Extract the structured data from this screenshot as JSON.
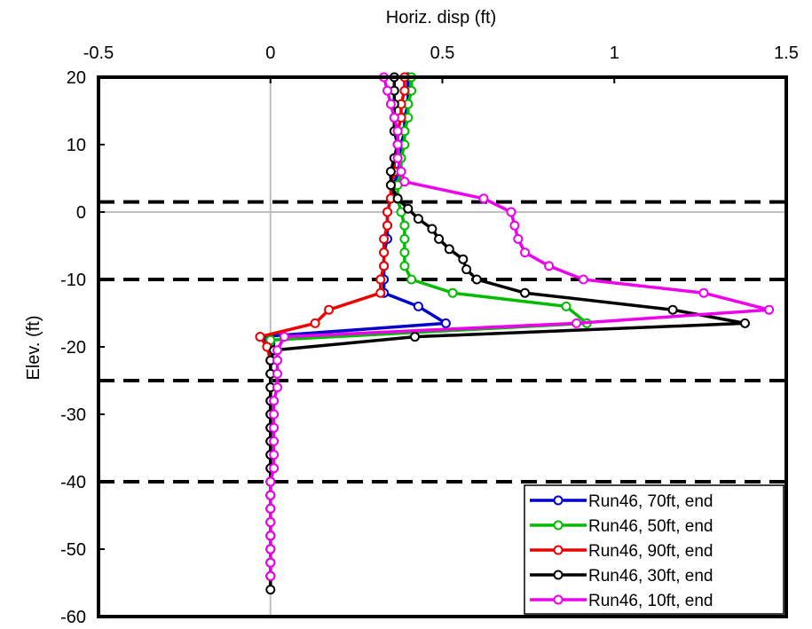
{
  "chart_data": {
    "type": "line",
    "xlabel": "Horiz. disp (ft)",
    "ylabel": "Elev. (ft)",
    "xlim": [
      -0.5,
      1.5
    ],
    "ylim": [
      -60,
      20
    ],
    "x_ticks": [
      "-0.5",
      "0",
      "0.5",
      "1",
      "1.5"
    ],
    "y_ticks": [
      "20",
      "10",
      "0",
      "-10",
      "-20",
      "-30",
      "-40",
      "-50",
      "-60"
    ],
    "x_tick_values": [
      -0.5,
      0,
      0.5,
      1,
      1.5
    ],
    "y_tick_values": [
      20,
      10,
      0,
      -10,
      -20,
      -30,
      -40,
      -50,
      -60
    ],
    "reference_lines_y": [
      1.5,
      -10,
      -25,
      -40
    ],
    "zero_line_x": 0,
    "zero_line_y": 0,
    "x_axis_position": "top",
    "legend_position": "bottom-right",
    "series": [
      {
        "name": "Run46, 70ft, end",
        "color": "#0000cc",
        "points": [
          [
            0.4,
            20
          ],
          [
            0.4,
            18
          ],
          [
            0.4,
            16
          ],
          [
            0.39,
            14
          ],
          [
            0.39,
            12
          ],
          [
            0.38,
            10
          ],
          [
            0.38,
            8
          ],
          [
            0.37,
            6
          ],
          [
            0.36,
            4
          ],
          [
            0.35,
            2
          ],
          [
            0.34,
            0
          ],
          [
            0.34,
            -2
          ],
          [
            0.34,
            -4
          ],
          [
            0.33,
            -6
          ],
          [
            0.33,
            -8
          ],
          [
            0.33,
            -10
          ],
          [
            0.33,
            -12
          ],
          [
            0.43,
            -14
          ],
          [
            0.51,
            -16.5
          ],
          [
            -0.03,
            -18.5
          ],
          [
            0.0,
            -19.5
          ],
          [
            0.01,
            -20.5
          ],
          [
            0.0,
            -22
          ],
          [
            0.0,
            -24
          ],
          [
            0.0,
            -26
          ],
          [
            0.0,
            -28
          ],
          [
            0.0,
            -30
          ],
          [
            0.0,
            -32
          ],
          [
            0.0,
            -34
          ],
          [
            0.0,
            -36
          ],
          [
            0.0,
            -38
          ],
          [
            0.0,
            -40
          ],
          [
            0.0,
            -42
          ],
          [
            0.0,
            -44
          ],
          [
            0.0,
            -46
          ],
          [
            0.0,
            -48
          ],
          [
            0.0,
            -50
          ],
          [
            0.0,
            -52
          ],
          [
            0.0,
            -54
          ]
        ]
      },
      {
        "name": "Run46, 50ft, end",
        "color": "#00bb00",
        "points": [
          [
            0.41,
            20
          ],
          [
            0.41,
            18
          ],
          [
            0.4,
            16
          ],
          [
            0.4,
            14
          ],
          [
            0.39,
            12
          ],
          [
            0.39,
            10
          ],
          [
            0.38,
            8
          ],
          [
            0.38,
            6
          ],
          [
            0.37,
            4
          ],
          [
            0.37,
            2
          ],
          [
            0.38,
            0
          ],
          [
            0.39,
            -2
          ],
          [
            0.39,
            -4
          ],
          [
            0.39,
            -6
          ],
          [
            0.39,
            -8
          ],
          [
            0.41,
            -10
          ],
          [
            0.53,
            -12
          ],
          [
            0.86,
            -14
          ],
          [
            0.92,
            -16.5
          ],
          [
            0.0,
            -19
          ],
          [
            0.01,
            -20.5
          ],
          [
            0.0,
            -22
          ],
          [
            0.0,
            -24
          ],
          [
            0.0,
            -26
          ],
          [
            0.0,
            -28
          ],
          [
            0.0,
            -30
          ],
          [
            0.0,
            -32
          ],
          [
            0.0,
            -34
          ],
          [
            0.0,
            -36
          ],
          [
            0.0,
            -38
          ],
          [
            0.0,
            -40
          ],
          [
            0.0,
            -42
          ],
          [
            0.0,
            -44
          ],
          [
            0.0,
            -46
          ],
          [
            0.0,
            -48
          ],
          [
            0.0,
            -50
          ],
          [
            0.0,
            -52
          ],
          [
            0.0,
            -54
          ]
        ]
      },
      {
        "name": "Run46, 90ft, end",
        "color": "#ee0000",
        "points": [
          [
            0.39,
            20
          ],
          [
            0.39,
            18
          ],
          [
            0.38,
            16
          ],
          [
            0.38,
            14
          ],
          [
            0.37,
            12
          ],
          [
            0.37,
            10
          ],
          [
            0.36,
            8
          ],
          [
            0.36,
            6
          ],
          [
            0.35,
            4
          ],
          [
            0.35,
            2
          ],
          [
            0.34,
            0
          ],
          [
            0.34,
            -2
          ],
          [
            0.33,
            -4
          ],
          [
            0.33,
            -6
          ],
          [
            0.33,
            -8
          ],
          [
            0.32,
            -10
          ],
          [
            0.32,
            -12
          ],
          [
            0.17,
            -14.5
          ],
          [
            0.13,
            -16.5
          ],
          [
            -0.03,
            -18.5
          ],
          [
            -0.01,
            -20
          ],
          [
            0.0,
            -22
          ],
          [
            0.0,
            -24
          ],
          [
            0.0,
            -26
          ],
          [
            0.0,
            -28
          ],
          [
            0.0,
            -30
          ],
          [
            0.0,
            -32
          ],
          [
            0.0,
            -34
          ],
          [
            0.0,
            -36
          ],
          [
            0.0,
            -38
          ],
          [
            0.0,
            -40
          ],
          [
            0.0,
            -42
          ],
          [
            0.0,
            -44
          ],
          [
            0.0,
            -46
          ],
          [
            0.0,
            -48
          ],
          [
            0.0,
            -50
          ],
          [
            0.0,
            -52
          ],
          [
            0.0,
            -54
          ]
        ]
      },
      {
        "name": "Run46, 30ft, end",
        "color": "#000000",
        "points": [
          [
            0.36,
            20
          ],
          [
            0.36,
            18
          ],
          [
            0.36,
            16
          ],
          [
            0.36,
            14
          ],
          [
            0.36,
            12
          ],
          [
            0.37,
            10
          ],
          [
            0.36,
            8
          ],
          [
            0.35,
            6
          ],
          [
            0.35,
            4
          ],
          [
            0.37,
            2
          ],
          [
            0.4,
            0.5
          ],
          [
            0.43,
            -1
          ],
          [
            0.47,
            -2.5
          ],
          [
            0.49,
            -4
          ],
          [
            0.52,
            -5.5
          ],
          [
            0.56,
            -7
          ],
          [
            0.57,
            -8.5
          ],
          [
            0.6,
            -10
          ],
          [
            0.74,
            -12
          ],
          [
            1.17,
            -14.5
          ],
          [
            1.38,
            -16.5
          ],
          [
            0.42,
            -18.5
          ],
          [
            0.01,
            -20.5
          ],
          [
            0.0,
            -22
          ],
          [
            0.0,
            -24
          ],
          [
            0.0,
            -26
          ],
          [
            0.0,
            -28
          ],
          [
            0.0,
            -30
          ],
          [
            0.0,
            -32
          ],
          [
            0.0,
            -34
          ],
          [
            0.0,
            -36
          ],
          [
            0.0,
            -38
          ],
          [
            0.0,
            -40
          ],
          [
            0.0,
            -42
          ],
          [
            0.0,
            -44
          ],
          [
            0.0,
            -46
          ],
          [
            0.0,
            -48
          ],
          [
            0.0,
            -50
          ],
          [
            0.0,
            -52
          ],
          [
            0.0,
            -54
          ],
          [
            0.0,
            -56
          ]
        ]
      },
      {
        "name": "Run46, 10ft, end",
        "color": "#ee00ee",
        "points": [
          [
            0.33,
            20
          ],
          [
            0.34,
            18
          ],
          [
            0.35,
            16
          ],
          [
            0.36,
            14
          ],
          [
            0.37,
            12
          ],
          [
            0.37,
            10
          ],
          [
            0.37,
            8
          ],
          [
            0.38,
            6
          ],
          [
            0.39,
            4.5
          ],
          [
            0.62,
            2
          ],
          [
            0.7,
            0
          ],
          [
            0.71,
            -2
          ],
          [
            0.72,
            -4
          ],
          [
            0.74,
            -6
          ],
          [
            0.81,
            -8
          ],
          [
            0.91,
            -10
          ],
          [
            1.26,
            -12
          ],
          [
            1.45,
            -14.5
          ],
          [
            0.89,
            -16.5
          ],
          [
            0.04,
            -18.5
          ],
          [
            0.02,
            -20.5
          ],
          [
            0.02,
            -22
          ],
          [
            0.02,
            -24
          ],
          [
            0.02,
            -26
          ],
          [
            0.01,
            -28
          ],
          [
            0.01,
            -30
          ],
          [
            0.01,
            -32
          ],
          [
            0.01,
            -34
          ],
          [
            0.01,
            -36
          ],
          [
            0.01,
            -38
          ],
          [
            0.0,
            -40
          ],
          [
            0.0,
            -42
          ],
          [
            0.0,
            -44
          ],
          [
            0.0,
            -46
          ],
          [
            0.0,
            -48
          ],
          [
            0.0,
            -50
          ],
          [
            0.0,
            -52
          ],
          [
            0.0,
            -54
          ]
        ]
      }
    ]
  }
}
